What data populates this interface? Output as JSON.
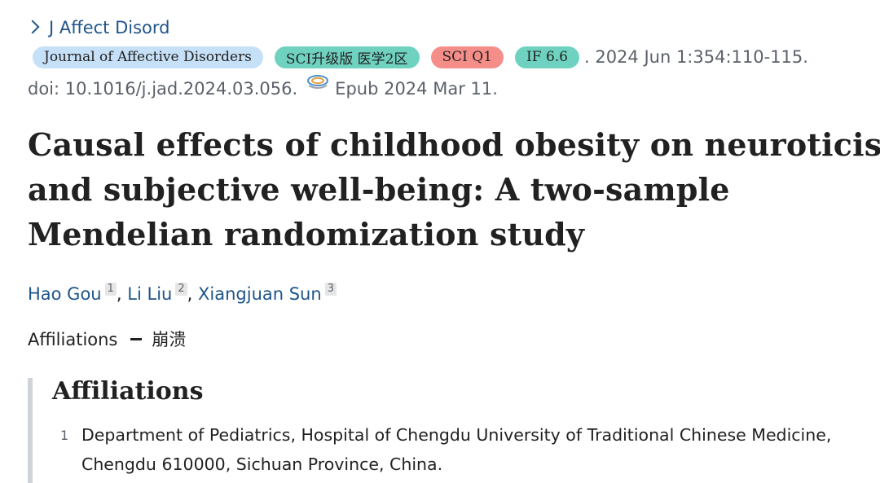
{
  "journal": {
    "short_name": "J Affect Disord"
  },
  "badges": {
    "journal_name": "Journal of Affective Disorders",
    "sci_zone": "SCI升级版 医学2区",
    "sci_q": "SCI Q1",
    "impact_factor": "IF 6.6",
    "colors": {
      "journal": "#c6e0f7",
      "zone": "#6fd2c0",
      "q1": "#f58d88",
      "if": "#6fd2c0"
    }
  },
  "citation": {
    "date_pages": ". 2024 Jun 1:354:110-115.",
    "doi": "doi: 10.1016/j.jad.2024.03.056.",
    "doi_icon": "free-pmc-icon",
    "epub": "Epub 2024 Mar 11."
  },
  "article": {
    "title": "Causal effects of childhood obesity on neuroticism and subjective well-being: A two-sample Mendelian randomization study"
  },
  "authors": [
    {
      "name": "Hao Gou",
      "aff": "1"
    },
    {
      "name": "Li Liu",
      "aff": "2"
    },
    {
      "name": "Xiangjuan Sun",
      "aff": "3"
    }
  ],
  "authors_separator": ",",
  "affiliations_toggle": {
    "label": "Affiliations",
    "action": "崩溃"
  },
  "affiliations_panel": {
    "heading": "Affiliations",
    "items": [
      {
        "num": "1",
        "text": "Department of Pediatrics, Hospital of Chengdu University of Traditional Chinese Medicine, Chengdu 610000, Sichuan Province, China."
      }
    ]
  },
  "colors": {
    "link": "#20558a",
    "muted": "#5b616b"
  }
}
